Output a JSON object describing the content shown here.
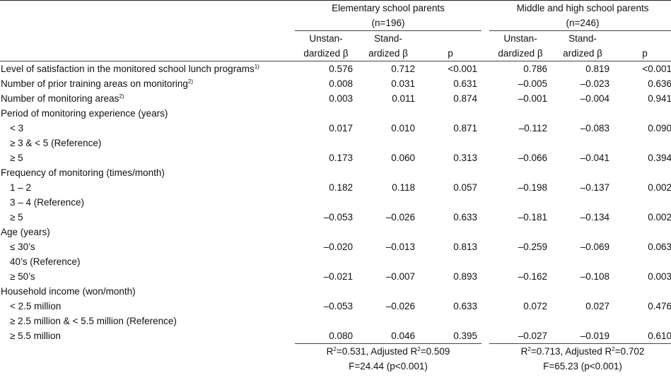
{
  "header": {
    "group1_title": "Elementary school parents",
    "group1_n": "(n=196)",
    "group2_title": "Middle and high school parents",
    "group2_n": "(n=246)",
    "col_unstd_line1": "Unstan-",
    "col_unstd_line2": "dardized β",
    "col_std_line1": "Stand-",
    "col_std_line2": "ardized β",
    "col_p": "p"
  },
  "rows": [
    {
      "label": "Level of satisfaction in the monitored school lunch programs",
      "sup": "1)",
      "indent": false,
      "v": [
        "0.576",
        "0.712",
        "<0.001",
        "0.786",
        "0.819",
        "<0.001"
      ]
    },
    {
      "label": "Number of prior training areas on monitoring",
      "sup": "2)",
      "indent": false,
      "v": [
        "0.008",
        "0.031",
        "0.631",
        "–0.005",
        "–0.023",
        "0.636"
      ]
    },
    {
      "label": "Number of monitoring areas",
      "sup": "2)",
      "indent": false,
      "v": [
        "0.003",
        "0.011",
        "0.874",
        "–0.001",
        "–0.004",
        "0.941"
      ]
    },
    {
      "label": "Period of monitoring experience (years)",
      "sup": "",
      "indent": false,
      "v": [
        "",
        "",
        "",
        "",
        "",
        ""
      ]
    },
    {
      "label": "< 3",
      "sup": "",
      "indent": true,
      "v": [
        "0.017",
        "0.010",
        "0.871",
        "–0.112",
        "–0.083",
        "0.090"
      ]
    },
    {
      "label": "≥ 3 & < 5 (Reference)",
      "sup": "",
      "indent": true,
      "v": [
        "",
        "",
        "",
        "",
        "",
        ""
      ]
    },
    {
      "label": "≥ 5",
      "sup": "",
      "indent": true,
      "v": [
        "0.173",
        "0.060",
        "0.313",
        "–0.066",
        "–0.041",
        "0.394"
      ]
    },
    {
      "label": "Frequency of monitoring (times/month)",
      "sup": "",
      "indent": false,
      "v": [
        "",
        "",
        "",
        "",
        "",
        ""
      ]
    },
    {
      "label": "1 – 2",
      "sup": "",
      "indent": true,
      "v": [
        "0.182",
        "0.118",
        "0.057",
        "–0.198",
        "–0.137",
        "0.002"
      ]
    },
    {
      "label": "3 – 4 (Reference)",
      "sup": "",
      "indent": true,
      "v": [
        "",
        "",
        "",
        "",
        "",
        ""
      ]
    },
    {
      "label": "≥ 5",
      "sup": "",
      "indent": true,
      "v": [
        "–0.053",
        "–0.026",
        "0.633",
        "–0.181",
        "–0.134",
        "0.002"
      ]
    },
    {
      "label": "Age (years)",
      "sup": "",
      "indent": false,
      "v": [
        "",
        "",
        "",
        "",
        "",
        ""
      ]
    },
    {
      "label": "≤ 30’s",
      "sup": "",
      "indent": true,
      "v": [
        "–0.020",
        "–0.013",
        "0.813",
        "–0.259",
        "–0.069",
        "0.063"
      ]
    },
    {
      "label": "40’s (Reference)",
      "sup": "",
      "indent": true,
      "v": [
        "",
        "",
        "",
        "",
        "",
        ""
      ]
    },
    {
      "label": "≥ 50’s",
      "sup": "",
      "indent": true,
      "v": [
        "–0.021",
        "–0.007",
        "0.893",
        "–0.162",
        "–0.108",
        "0.003"
      ]
    },
    {
      "label": "Household income (won/month)",
      "sup": "",
      "indent": false,
      "v": [
        "",
        "",
        "",
        "",
        "",
        ""
      ]
    },
    {
      "label": "< 2.5 million",
      "sup": "",
      "indent": true,
      "v": [
        "–0.053",
        "–0.026",
        "0.633",
        "0.072",
        "0.027",
        "0.476"
      ]
    },
    {
      "label": "≥ 2.5 million & < 5.5 million (Reference)",
      "sup": "",
      "indent": true,
      "v": [
        "",
        "",
        "",
        "",
        "",
        ""
      ]
    },
    {
      "label": "≥ 5.5 million",
      "sup": "",
      "indent": true,
      "v": [
        "0.080",
        "0.046",
        "0.395",
        "–0.027",
        "–0.019",
        "0.610"
      ]
    }
  ],
  "footer": {
    "g1_r2_prefix": "R",
    "g1_r2_mid": "=0.531, Adjusted R",
    "g1_r2_end": "=0.509",
    "g1_f": "F=24.44 (p<0.001)",
    "g2_r2_prefix": "R",
    "g2_r2_mid": "=0.713, Adjusted R",
    "g2_r2_end": "=0.702",
    "g2_f": "F=65.23 (p<0.001)",
    "sq": "2"
  }
}
